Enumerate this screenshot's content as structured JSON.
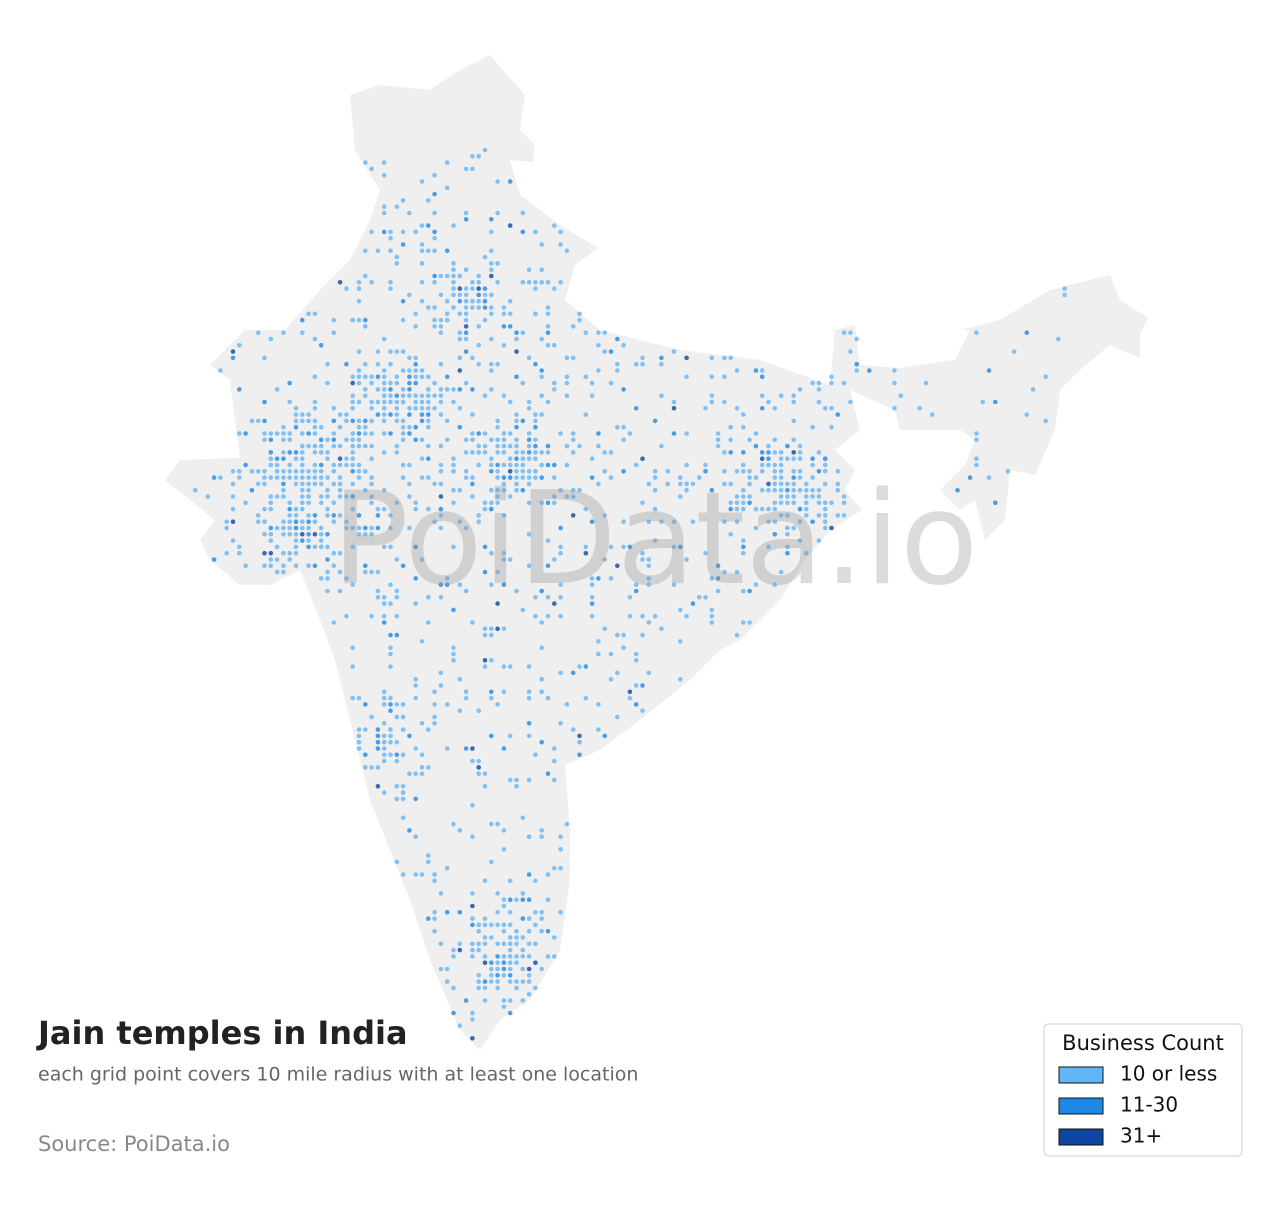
{
  "title": "Jain temples in India",
  "subtitle": "each grid point covers 10 mile radius with at least one location",
  "source": "Source: PoiData.io",
  "watermark": "PoiData.io",
  "legend": {
    "title": "Business Count",
    "items": [
      {
        "label": "10 or less",
        "color": "#64b5f6"
      },
      {
        "label": "11-30",
        "color": "#1e88e5"
      },
      {
        "label": "31+",
        "color": "#0d47a1"
      }
    ]
  }
}
